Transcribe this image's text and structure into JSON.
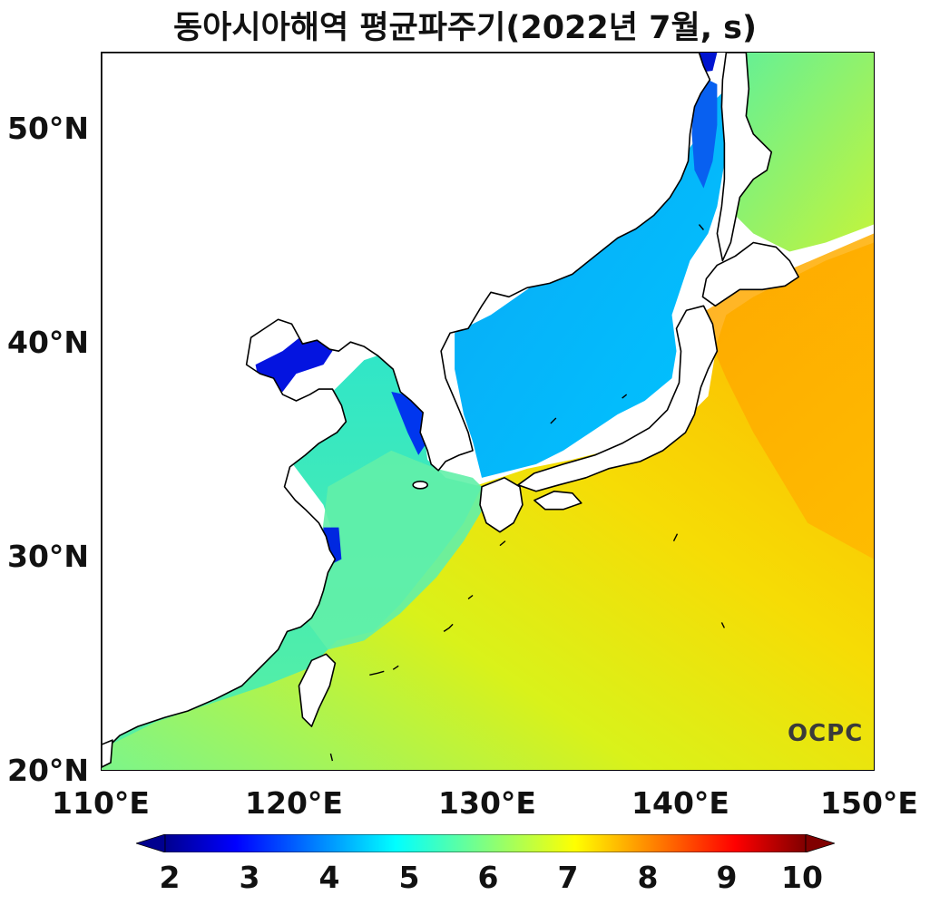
{
  "title": "동아시아해역 평균파주기(2022년 7월, s)",
  "map": {
    "lon_range": [
      110,
      150
    ],
    "lat_range": [
      20,
      53.5
    ],
    "x_ticks": [
      "110°E",
      "120°E",
      "130°E",
      "140°E",
      "150°E"
    ],
    "y_ticks": [
      "20°N",
      "30°N",
      "40°N",
      "50°N"
    ]
  },
  "colorbar": {
    "min": 2,
    "max": 10,
    "labels": [
      "2",
      "3",
      "4",
      "5",
      "6",
      "7",
      "8",
      "9",
      "10"
    ],
    "extend": "both",
    "colormap": "jet",
    "colors": [
      "#00008f",
      "#0000ff",
      "#0080ff",
      "#00ffff",
      "#80ff80",
      "#ffff00",
      "#ff8000",
      "#ff0000",
      "#800000"
    ]
  },
  "logo": "OCPC"
}
